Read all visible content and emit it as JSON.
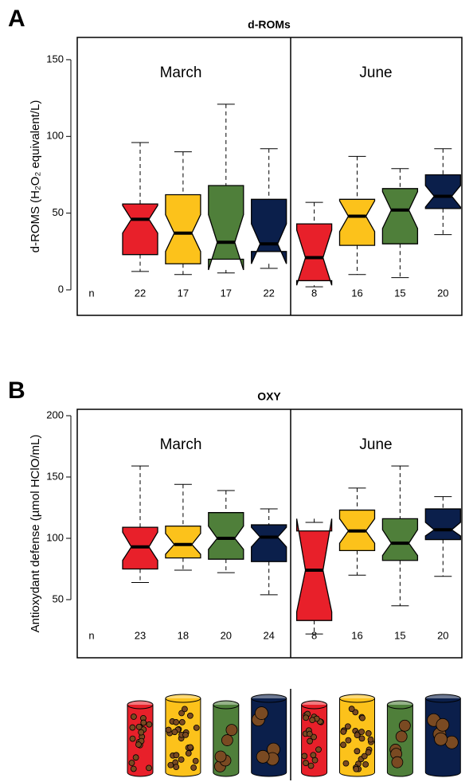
{
  "chart_data": [
    {
      "type": "box",
      "panel_label": "A",
      "title": "d-ROMs",
      "ylabel": "d-ROMS (H₂O₂ equivalent/L)",
      "ylim": [
        -16.6,
        164.5
      ],
      "yticks": [
        0,
        50,
        100,
        150
      ],
      "groups": [
        "March",
        "June"
      ],
      "n_label": "n",
      "boxes": [
        {
          "color": "#e8202a",
          "whisker_low": 12,
          "q1": 23,
          "median": 46,
          "q3": 56,
          "whisker_high": 96,
          "notch": [
            37,
            55
          ],
          "n": 22
        },
        {
          "color": "#fcc21b",
          "whisker_low": 10,
          "q1": 17,
          "median": 37,
          "q3": 62,
          "whisker_high": 90,
          "notch": [
            25,
            49
          ],
          "n": 17
        },
        {
          "color": "#4f7f3a",
          "whisker_low": 11,
          "q1": 20,
          "median": 31,
          "q3": 68,
          "whisker_high": 121,
          "notch": [
            13,
            49
          ],
          "n": 17
        },
        {
          "color": "#0b1f4b",
          "whisker_low": 14,
          "q1": 25,
          "median": 30,
          "q3": 59,
          "whisker_high": 92,
          "notch": [
            17,
            43
          ],
          "n": 22
        },
        {
          "color": "#e8202a",
          "whisker_low": 2,
          "q1": 6,
          "median": 21,
          "q3": 43,
          "whisker_high": 57,
          "notch": [
            3,
            39
          ],
          "n": 8
        },
        {
          "color": "#fcc21b",
          "whisker_low": 10,
          "q1": 29,
          "median": 48,
          "q3": 59,
          "whisker_high": 87,
          "notch": [
            38,
            58
          ],
          "n": 16
        },
        {
          "color": "#4f7f3a",
          "whisker_low": 8,
          "q1": 30,
          "median": 52,
          "q3": 66,
          "whisker_high": 79,
          "notch": [
            40,
            64
          ],
          "n": 15
        },
        {
          "color": "#0b1f4b",
          "whisker_low": 36,
          "q1": 53,
          "median": 61,
          "q3": 75,
          "whisker_high": 92,
          "notch": [
            54,
            68
          ],
          "n": 20
        }
      ]
    },
    {
      "type": "box",
      "panel_label": "B",
      "title": "OXY",
      "ylabel": "Antioxydant defense (µmol HClO/mL)",
      "ylim": [
        2.6,
        205.2
      ],
      "yticks": [
        50,
        100,
        150,
        200
      ],
      "groups": [
        "March",
        "June"
      ],
      "n_label": "n",
      "boxes": [
        {
          "color": "#e8202a",
          "whisker_low": 64,
          "q1": 75,
          "median": 93,
          "q3": 109,
          "whisker_high": 159,
          "notch": [
            82,
            105
          ],
          "n": 23
        },
        {
          "color": "#fcc21b",
          "whisker_low": 74,
          "q1": 84,
          "median": 95,
          "q3": 110,
          "whisker_high": 144,
          "notch": [
            87,
            104
          ],
          "n": 18
        },
        {
          "color": "#4f7f3a",
          "whisker_low": 72,
          "q1": 83,
          "median": 100,
          "q3": 121,
          "whisker_high": 139,
          "notch": [
            91,
            110
          ],
          "n": 20
        },
        {
          "color": "#0b1f4b",
          "whisker_low": 54,
          "q1": 81,
          "median": 101,
          "q3": 111,
          "whisker_high": 124,
          "notch": [
            93,
            109
          ],
          "n": 24
        },
        {
          "color": "#e8202a",
          "whisker_low": 22,
          "q1": 33,
          "median": 74,
          "q3": 106,
          "whisker_high": 113,
          "notch": [
            40,
            116
          ],
          "n": 8
        },
        {
          "color": "#fcc21b",
          "whisker_low": 70,
          "q1": 90,
          "median": 106,
          "q3": 123,
          "whisker_high": 141,
          "notch": [
            96,
            116
          ],
          "n": 16
        },
        {
          "color": "#4f7f3a",
          "whisker_low": 45,
          "q1": 82,
          "median": 96,
          "q3": 116,
          "whisker_high": 159,
          "notch": [
            86,
            107
          ],
          "n": 15
        },
        {
          "color": "#0b1f4b",
          "whisker_low": 69,
          "q1": 99,
          "median": 107,
          "q3": 124,
          "whisker_high": 134,
          "notch": [
            102,
            113
          ],
          "n": 20
        }
      ]
    }
  ]
}
